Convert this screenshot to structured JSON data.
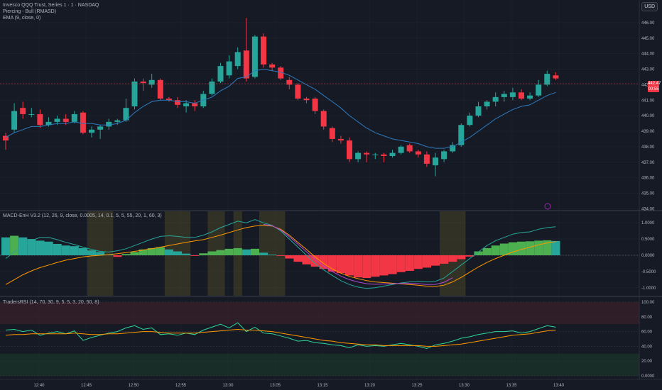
{
  "header": {
    "symbol_line": "Invesco QQQ Trust, Series 1 · 1 · NASDAQ",
    "pattern_line": "Piercing - Bull (RMASD)",
    "ema_line": "EMA (9, close, 0)",
    "currency": "USD"
  },
  "price_axis": {
    "ticks": [
      "446.00",
      "445.00",
      "444.00",
      "443.00",
      "442.00",
      "441.00",
      "440.00",
      "439.00",
      "438.00",
      "437.00",
      "436.00",
      "435.00",
      "434.00"
    ],
    "last_price": "442.47",
    "countdown": "00:55"
  },
  "macd_pane": {
    "title": "MACD-EnH V3.2 (12, 26, 9, close, 0.0005, 14, 0.1, 5, 5, 55, 20, 1, 60, 3)",
    "ticks": [
      "1.0000",
      "0.5000",
      "0.0000",
      "-0.5000",
      "-1.0000"
    ]
  },
  "rsi_pane": {
    "title": "TradersRSI (14, 70, 30, 9, 5, 5, 3, 20, 50, 8)",
    "ticks": [
      "100.00",
      "80.00",
      "60.00",
      "40.00",
      "20.00",
      "0.0000"
    ]
  },
  "time_axis": {
    "labels": [
      "12:40",
      "12:45",
      "12:50",
      "12:55",
      "13:00",
      "13:05",
      "13:15",
      "13:20",
      "13:25",
      "13:30",
      "13:35",
      "13:40"
    ]
  },
  "colors": {
    "bull": "#26a69a",
    "bear": "#f23645",
    "ema": "#2e7bbf",
    "macd_line": "#26a69a",
    "signal_line": "#ff9800",
    "extra_line": "#b04ad8",
    "rsi_line": "#2fd79a",
    "rsi_signal": "#ff9800",
    "highlight": "#4a4628"
  },
  "chart_data": {
    "type": "candlestick",
    "x_interval": "1 minute",
    "candles": [
      {
        "o": 438.7,
        "h": 438.9,
        "l": 437.8,
        "c": 438.4
      },
      {
        "o": 439.1,
        "h": 440.8,
        "l": 438.9,
        "c": 440.3
      },
      {
        "o": 440.5,
        "h": 440.9,
        "l": 439.8,
        "c": 440.1
      },
      {
        "o": 440.1,
        "h": 440.5,
        "l": 439.9,
        "c": 440.1
      },
      {
        "o": 440.1,
        "h": 440.4,
        "l": 439.2,
        "c": 439.4
      },
      {
        "o": 439.4,
        "h": 439.9,
        "l": 439.3,
        "c": 439.6
      },
      {
        "o": 439.6,
        "h": 440.0,
        "l": 439.4,
        "c": 439.8
      },
      {
        "o": 439.8,
        "h": 440.1,
        "l": 439.4,
        "c": 439.6
      },
      {
        "o": 439.6,
        "h": 440.3,
        "l": 439.5,
        "c": 440.1
      },
      {
        "o": 440.2,
        "h": 440.3,
        "l": 438.8,
        "c": 438.9
      },
      {
        "o": 438.9,
        "h": 439.3,
        "l": 438.6,
        "c": 439.1
      },
      {
        "o": 439.1,
        "h": 439.4,
        "l": 438.5,
        "c": 439.3
      },
      {
        "o": 439.3,
        "h": 439.8,
        "l": 439.1,
        "c": 439.6
      },
      {
        "o": 439.6,
        "h": 439.8,
        "l": 439.4,
        "c": 439.7
      },
      {
        "o": 439.7,
        "h": 441.1,
        "l": 439.6,
        "c": 440.5
      },
      {
        "o": 440.6,
        "h": 442.4,
        "l": 440.4,
        "c": 442.2
      },
      {
        "o": 442.2,
        "h": 442.4,
        "l": 441.6,
        "c": 442.1
      },
      {
        "o": 442.0,
        "h": 442.7,
        "l": 441.8,
        "c": 442.3
      },
      {
        "o": 442.3,
        "h": 442.4,
        "l": 441.0,
        "c": 441.1
      },
      {
        "o": 441.1,
        "h": 441.2,
        "l": 440.9,
        "c": 441.0
      },
      {
        "o": 441.0,
        "h": 441.2,
        "l": 440.5,
        "c": 440.7
      },
      {
        "o": 440.6,
        "h": 441.0,
        "l": 440.2,
        "c": 440.8
      },
      {
        "o": 440.8,
        "h": 441.0,
        "l": 440.3,
        "c": 440.6
      },
      {
        "o": 440.6,
        "h": 441.6,
        "l": 440.5,
        "c": 441.4
      },
      {
        "o": 441.4,
        "h": 442.4,
        "l": 441.3,
        "c": 442.2
      },
      {
        "o": 442.2,
        "h": 443.4,
        "l": 442.1,
        "c": 443.2
      },
      {
        "o": 442.6,
        "h": 443.9,
        "l": 442.4,
        "c": 443.5
      },
      {
        "o": 443.2,
        "h": 444.4,
        "l": 443.0,
        "c": 444.1
      },
      {
        "o": 444.2,
        "h": 446.3,
        "l": 442.2,
        "c": 442.4
      },
      {
        "o": 442.5,
        "h": 445.2,
        "l": 442.4,
        "c": 445.1
      },
      {
        "o": 445.1,
        "h": 445.3,
        "l": 443.1,
        "c": 443.3
      },
      {
        "o": 443.3,
        "h": 443.4,
        "l": 442.9,
        "c": 443.1
      },
      {
        "o": 443.1,
        "h": 443.2,
        "l": 442.3,
        "c": 442.4
      },
      {
        "o": 442.3,
        "h": 442.5,
        "l": 441.7,
        "c": 442.0
      },
      {
        "o": 442.0,
        "h": 442.1,
        "l": 441.0,
        "c": 441.1
      },
      {
        "o": 441.1,
        "h": 441.2,
        "l": 440.8,
        "c": 441.0
      },
      {
        "o": 441.1,
        "h": 441.2,
        "l": 440.1,
        "c": 440.3
      },
      {
        "o": 440.3,
        "h": 440.4,
        "l": 439.1,
        "c": 439.3
      },
      {
        "o": 439.2,
        "h": 439.3,
        "l": 438.3,
        "c": 438.5
      },
      {
        "o": 438.5,
        "h": 438.7,
        "l": 438.2,
        "c": 438.4
      },
      {
        "o": 438.4,
        "h": 438.6,
        "l": 437.0,
        "c": 437.2
      },
      {
        "o": 437.2,
        "h": 437.7,
        "l": 437.0,
        "c": 437.6
      },
      {
        "o": 437.6,
        "h": 437.7,
        "l": 437.0,
        "c": 437.5
      },
      {
        "o": 437.5,
        "h": 437.6,
        "l": 437.2,
        "c": 437.5
      },
      {
        "o": 437.5,
        "h": 437.6,
        "l": 437.0,
        "c": 437.4
      },
      {
        "o": 437.4,
        "h": 437.8,
        "l": 437.3,
        "c": 437.6
      },
      {
        "o": 437.6,
        "h": 438.1,
        "l": 437.5,
        "c": 438.0
      },
      {
        "o": 438.1,
        "h": 438.2,
        "l": 437.6,
        "c": 437.7
      },
      {
        "o": 437.7,
        "h": 437.8,
        "l": 437.3,
        "c": 437.5
      },
      {
        "o": 437.5,
        "h": 437.7,
        "l": 436.7,
        "c": 436.9
      },
      {
        "o": 436.8,
        "h": 437.6,
        "l": 436.1,
        "c": 437.3
      },
      {
        "o": 437.2,
        "h": 437.8,
        "l": 437.0,
        "c": 437.7
      },
      {
        "o": 437.7,
        "h": 438.3,
        "l": 437.6,
        "c": 438.1
      },
      {
        "o": 438.1,
        "h": 439.5,
        "l": 438.0,
        "c": 439.4
      },
      {
        "o": 439.4,
        "h": 440.2,
        "l": 439.3,
        "c": 440.0
      },
      {
        "o": 440.0,
        "h": 440.9,
        "l": 439.9,
        "c": 440.6
      },
      {
        "o": 440.6,
        "h": 441.0,
        "l": 440.4,
        "c": 440.9
      },
      {
        "o": 440.9,
        "h": 441.5,
        "l": 440.6,
        "c": 441.2
      },
      {
        "o": 441.2,
        "h": 441.6,
        "l": 440.9,
        "c": 441.4
      },
      {
        "o": 441.2,
        "h": 441.8,
        "l": 441.0,
        "c": 441.5
      },
      {
        "o": 441.5,
        "h": 441.7,
        "l": 441.0,
        "c": 441.1
      },
      {
        "o": 441.1,
        "h": 441.5,
        "l": 441.0,
        "c": 441.3
      },
      {
        "o": 441.3,
        "h": 442.3,
        "l": 441.2,
        "c": 442.0
      },
      {
        "o": 442.0,
        "h": 442.9,
        "l": 441.9,
        "c": 442.7
      },
      {
        "o": 442.6,
        "h": 442.8,
        "l": 442.3,
        "c": 442.4
      }
    ],
    "ema": [
      438.6,
      438.9,
      439.1,
      439.3,
      439.3,
      439.4,
      439.5,
      439.5,
      439.6,
      439.5,
      439.5,
      439.4,
      439.4,
      439.5,
      439.7,
      440.2,
      440.6,
      440.9,
      441.0,
      441.0,
      440.9,
      440.9,
      440.8,
      441.0,
      441.2,
      441.6,
      441.9,
      442.4,
      442.5,
      442.9,
      443.0,
      442.9,
      442.8,
      442.6,
      442.3,
      442.0,
      441.7,
      441.3,
      440.9,
      440.5,
      440.0,
      439.6,
      439.2,
      438.9,
      438.7,
      438.5,
      438.4,
      438.3,
      438.2,
      438.0,
      437.9,
      437.9,
      438.0,
      438.3,
      438.6,
      439.0,
      439.4,
      439.8,
      440.1,
      440.4,
      440.6,
      440.7,
      441.0,
      441.3,
      441.5
    ],
    "macd_histogram": [
      0.55,
      0.6,
      0.55,
      0.5,
      0.45,
      0.42,
      0.35,
      0.3,
      0.28,
      0.22,
      0.15,
      0.1,
      0.02,
      -0.05,
      0.04,
      0.1,
      0.18,
      0.22,
      0.25,
      0.18,
      0.12,
      0.05,
      -0.02,
      0.06,
      0.12,
      0.16,
      0.2,
      0.22,
      0.18,
      0.2,
      0.08,
      0.02,
      -0.02,
      -0.1,
      -0.2,
      -0.28,
      -0.35,
      -0.42,
      -0.5,
      -0.55,
      -0.62,
      -0.68,
      -0.7,
      -0.66,
      -0.62,
      -0.58,
      -0.52,
      -0.48,
      -0.42,
      -0.38,
      -0.32,
      -0.26,
      -0.2,
      -0.12,
      -0.04,
      0.12,
      0.22,
      0.3,
      0.36,
      0.4,
      0.42,
      0.43,
      0.45,
      0.46,
      0.44
    ],
    "macd_line": [
      -0.1,
      0.1,
      0.3,
      0.45,
      0.55,
      0.55,
      0.48,
      0.4,
      0.33,
      0.25,
      0.18,
      0.12,
      0.1,
      0.14,
      0.2,
      0.3,
      0.4,
      0.5,
      0.58,
      0.6,
      0.58,
      0.55,
      0.55,
      0.62,
      0.72,
      0.85,
      0.95,
      1.05,
      1.0,
      1.1,
      1.0,
      0.92,
      0.75,
      0.5,
      0.25,
      0.0,
      -0.25,
      -0.45,
      -0.62,
      -0.78,
      -0.9,
      -0.98,
      -1.02,
      -1.0,
      -0.95,
      -0.9,
      -0.85,
      -0.82,
      -0.8,
      -0.82,
      -0.8,
      -0.7,
      -0.5,
      -0.3,
      -0.1,
      0.1,
      0.3,
      0.45,
      0.55,
      0.65,
      0.7,
      0.72,
      0.8,
      0.85,
      0.88
    ],
    "signal_line": [
      -0.9,
      -0.75,
      -0.6,
      -0.48,
      -0.38,
      -0.3,
      -0.22,
      -0.15,
      -0.1,
      -0.05,
      -0.02,
      0.0,
      0.02,
      0.05,
      0.08,
      0.12,
      0.16,
      0.2,
      0.25,
      0.3,
      0.35,
      0.4,
      0.44,
      0.48,
      0.55,
      0.62,
      0.7,
      0.78,
      0.85,
      0.9,
      0.92,
      0.9,
      0.8,
      0.62,
      0.4,
      0.18,
      -0.05,
      -0.25,
      -0.42,
      -0.55,
      -0.65,
      -0.72,
      -0.78,
      -0.82,
      -0.84,
      -0.86,
      -0.88,
      -0.9,
      -0.92,
      -0.95,
      -0.96,
      -0.92,
      -0.82,
      -0.68,
      -0.52,
      -0.36,
      -0.22,
      -0.1,
      0.0,
      0.1,
      0.18,
      0.25,
      0.32,
      0.38,
      0.42
    ],
    "rsi": [
      62,
      63,
      60,
      62,
      55,
      58,
      60,
      57,
      61,
      48,
      52,
      55,
      58,
      60,
      65,
      68,
      63,
      65,
      56,
      57,
      55,
      58,
      56,
      62,
      66,
      70,
      65,
      72,
      60,
      66,
      58,
      57,
      54,
      51,
      47,
      48,
      45,
      44,
      42,
      41,
      38,
      42,
      40,
      41,
      40,
      42,
      44,
      42,
      40,
      37,
      42,
      44,
      47,
      51,
      53,
      56,
      58,
      60,
      60,
      61,
      58,
      60,
      64,
      68,
      66
    ],
    "rsi_signal": [
      55,
      56,
      56,
      57,
      57,
      57,
      57,
      57,
      58,
      57,
      56,
      56,
      57,
      57,
      58,
      59,
      60,
      60,
      59,
      58,
      58,
      58,
      58,
      59,
      60,
      61,
      62,
      63,
      62,
      62,
      61,
      60,
      58,
      56,
      54,
      52,
      50,
      48,
      47,
      45,
      44,
      43,
      42,
      42,
      41,
      41,
      41,
      41,
      41,
      40,
      40,
      41,
      42,
      43,
      45,
      47,
      49,
      51,
      53,
      55,
      56,
      57,
      59,
      61,
      62
    ],
    "price_ylim": [
      434.2,
      447.0
    ],
    "macd_ylim": [
      -1.2,
      1.2
    ],
    "rsi_ylim": [
      0,
      100
    ]
  }
}
